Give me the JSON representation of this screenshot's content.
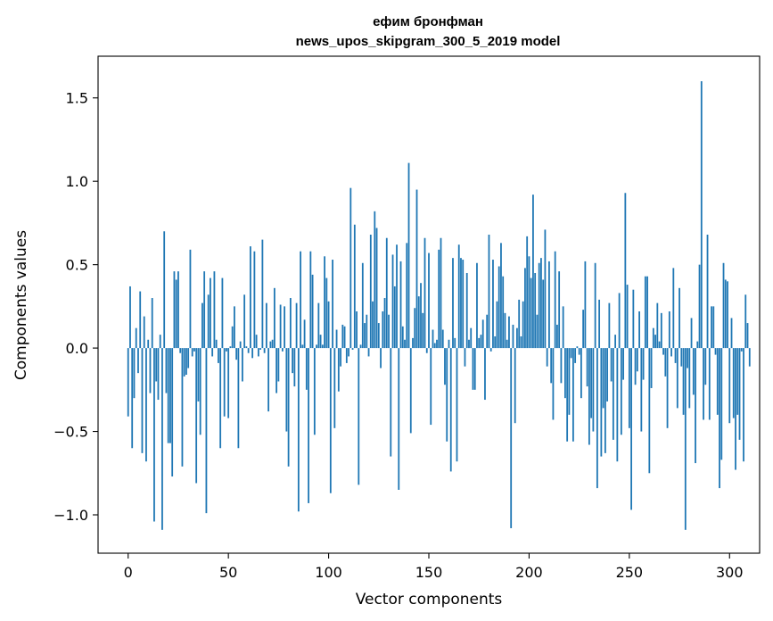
{
  "chart_data": {
    "type": "bar",
    "title": "ефим бронфман",
    "subtitle": "news_upos_skipgram_300_5_2019 model",
    "xlabel": "Vector components",
    "ylabel": "Components values",
    "xlim": [
      -15,
      315
    ],
    "ylim": [
      -1.23,
      1.75
    ],
    "xticks": [
      0,
      50,
      100,
      150,
      200,
      250,
      300
    ],
    "xtick_labels": [
      "0",
      "50",
      "100",
      "150",
      "200",
      "250",
      "300"
    ],
    "yticks": [
      -1.0,
      -0.5,
      0.0,
      0.5,
      1.0,
      1.5
    ],
    "ytick_labels": [
      "−1.0",
      "−0.5",
      "0.0",
      "0.5",
      "1.0",
      "1.5"
    ],
    "bar_color": "#1f77b4",
    "grid": false,
    "series": [
      {
        "name": "components",
        "values": [
          -0.41,
          0.37,
          -0.6,
          -0.3,
          0.12,
          -0.15,
          0.34,
          -0.63,
          0.19,
          -0.68,
          0.05,
          -0.27,
          0.3,
          -1.04,
          -0.2,
          -0.31,
          0.08,
          -1.09,
          0.7,
          -0.27,
          -0.57,
          -0.57,
          -0.77,
          0.46,
          0.41,
          0.46,
          -0.03,
          -0.71,
          -0.17,
          -0.16,
          -0.12,
          0.59,
          -0.05,
          -0.02,
          -0.81,
          -0.32,
          -0.52,
          0.27,
          0.46,
          -0.99,
          0.32,
          0.42,
          -0.05,
          0.46,
          0.05,
          -0.09,
          -0.6,
          0.42,
          -0.41,
          -0.02,
          -0.42,
          0.01,
          0.13,
          0.25,
          -0.07,
          -0.6,
          0.04,
          -0.2,
          0.32,
          0.01,
          -0.03,
          0.61,
          -0.06,
          0.58,
          0.08,
          -0.05,
          -0.01,
          0.65,
          -0.03,
          0.27,
          -0.38,
          0.04,
          0.05,
          0.36,
          -0.27,
          -0.2,
          0.26,
          -0.02,
          0.25,
          -0.5,
          -0.71,
          0.3,
          -0.15,
          -0.23,
          0.27,
          -0.98,
          0.58,
          0.02,
          0.17,
          -0.25,
          -0.93,
          0.58,
          0.44,
          -0.52,
          0.02,
          0.27,
          0.08,
          0.02,
          0.55,
          0.42,
          0.28,
          -0.87,
          0.53,
          -0.48,
          0.11,
          -0.26,
          -0.11,
          0.14,
          0.13,
          -0.09,
          -0.05,
          0.96,
          -0.01,
          0.74,
          0.22,
          -0.82,
          0.02,
          0.51,
          0.15,
          0.2,
          -0.05,
          0.68,
          0.28,
          0.82,
          0.72,
          0.15,
          -0.12,
          0.22,
          0.3,
          0.66,
          0.2,
          -0.65,
          0.56,
          0.37,
          0.62,
          -0.85,
          0.52,
          0.13,
          0.05,
          0.63,
          1.11,
          -0.51,
          0.06,
          0.24,
          0.95,
          0.31,
          0.39,
          0.21,
          0.66,
          -0.03,
          0.57,
          -0.46,
          0.11,
          0.03,
          0.05,
          0.59,
          0.66,
          0.11,
          -0.22,
          -0.56,
          0.05,
          -0.74,
          0.54,
          0.06,
          -0.68,
          0.62,
          0.54,
          0.53,
          -0.11,
          0.45,
          0.05,
          0.12,
          -0.25,
          -0.25,
          0.51,
          0.06,
          0.08,
          0.17,
          -0.31,
          0.2,
          0.68,
          -0.02,
          0.53,
          0.07,
          0.28,
          0.49,
          0.63,
          0.43,
          0.21,
          0.05,
          0.19,
          -1.08,
          0.14,
          -0.45,
          0.12,
          0.29,
          0.07,
          0.28,
          0.48,
          0.67,
          0.55,
          0.42,
          0.92,
          0.45,
          0.2,
          0.51,
          0.54,
          0.41,
          0.71,
          -0.11,
          0.52,
          -0.21,
          -0.43,
          0.58,
          0.14,
          0.46,
          -0.21,
          0.25,
          -0.3,
          -0.56,
          -0.4,
          -0.06,
          -0.56,
          -0.09,
          0.01,
          -0.04,
          -0.3,
          0.23,
          0.52,
          -0.23,
          -0.58,
          -0.42,
          -0.5,
          0.51,
          -0.84,
          0.29,
          -0.65,
          -0.36,
          -0.63,
          -0.32,
          0.27,
          -0.2,
          -0.55,
          0.08,
          -0.68,
          0.33,
          -0.52,
          -0.19,
          0.93,
          0.38,
          -0.48,
          -0.97,
          0.35,
          -0.22,
          -0.14,
          0.22,
          -0.5,
          -0.19,
          0.43,
          0.43,
          -0.75,
          -0.24,
          0.12,
          0.08,
          0.27,
          0.04,
          0.21,
          -0.04,
          -0.17,
          -0.48,
          0.22,
          -0.05,
          0.48,
          -0.09,
          -0.36,
          0.36,
          -0.11,
          -0.4,
          -1.09,
          -0.12,
          -0.36,
          0.18,
          -0.28,
          -0.69,
          0.04,
          0.5,
          1.6,
          -0.43,
          -0.22,
          0.68,
          -0.43,
          0.25,
          0.25,
          -0.04,
          -0.4,
          -0.84,
          -0.67,
          0.51,
          0.41,
          0.4,
          -0.45,
          0.18,
          -0.42,
          -0.73,
          -0.4,
          -0.55,
          -0.02,
          -0.68,
          0.32,
          0.15,
          -0.11
        ]
      }
    ]
  }
}
